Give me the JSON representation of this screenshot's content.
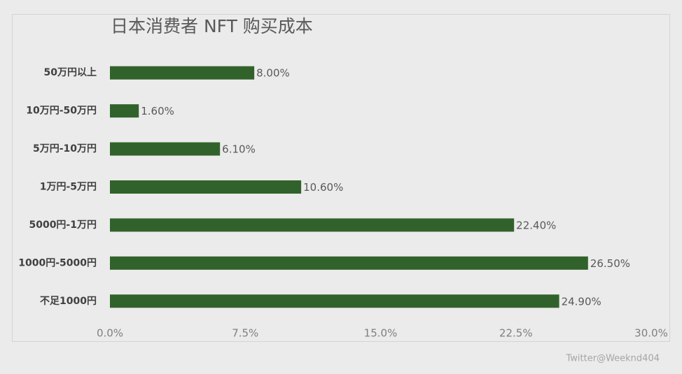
{
  "chart_data": {
    "type": "bar",
    "orientation": "horizontal",
    "title": "日本消费者 NFT 购买成本",
    "categories": [
      "50万円以上",
      "10万円-50万円",
      "5万円-10万円",
      "1万円-5万円",
      "5000円-1万円",
      "1000円-5000円",
      "不足1000円"
    ],
    "values": [
      8.0,
      1.6,
      6.1,
      10.6,
      22.4,
      26.5,
      24.9
    ],
    "value_labels": [
      "8.00%",
      "1.60%",
      "6.10%",
      "10.60%",
      "22.40%",
      "26.50%",
      "24.90%"
    ],
    "color": "#32622b",
    "xlim": [
      0,
      30
    ],
    "xticks": [
      {
        "value": 0,
        "label": "0.0%"
      },
      {
        "value": 7.5,
        "label": "7.5%"
      },
      {
        "value": 15,
        "label": "15.0%"
      },
      {
        "value": 22.5,
        "label": "22.5%"
      },
      {
        "value": 30,
        "label": "30.0%"
      }
    ],
    "grid": false
  },
  "watermark": "Twitter@Weeknd404"
}
